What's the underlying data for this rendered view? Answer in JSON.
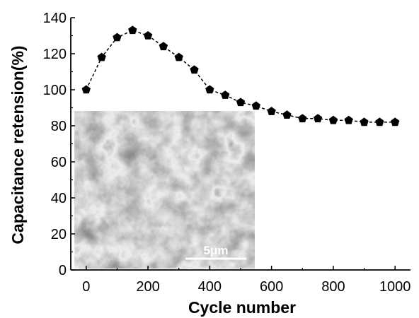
{
  "chart_data": {
    "type": "line",
    "title": "",
    "xlabel": "Cycle number",
    "ylabel": "Capacitance retension(%)",
    "xlim": [
      -50,
      1050
    ],
    "ylim": [
      0,
      140
    ],
    "xticks": [
      0,
      200,
      400,
      600,
      800,
      1000
    ],
    "yticks": [
      0,
      20,
      40,
      60,
      80,
      100,
      120,
      140
    ],
    "grid": false,
    "marker": "pentagon",
    "series": [
      {
        "x": [
          0,
          50,
          100,
          150,
          200,
          250,
          300,
          350,
          400,
          450,
          500,
          550,
          600,
          650,
          700,
          750,
          800,
          850,
          900,
          950,
          1000
        ],
        "y": [
          100,
          118,
          129,
          133,
          130,
          124,
          118,
          111,
          100,
          97,
          93,
          91,
          88,
          86,
          84,
          84,
          83,
          83,
          82,
          82,
          82
        ]
      }
    ],
    "inset": {
      "description_icon": "sem-micrograph-image",
      "scale_bar_label": "5μm"
    }
  }
}
